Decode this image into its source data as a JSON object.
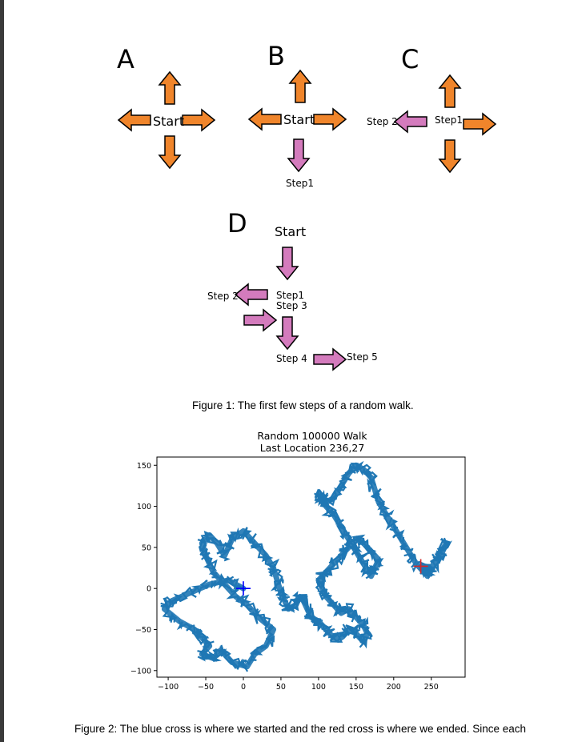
{
  "figure1": {
    "panels": {
      "A": {
        "letter": "A",
        "start_label": "Start"
      },
      "B": {
        "letter": "B",
        "start_label": "Start",
        "step1_label": "Step1"
      },
      "C": {
        "letter": "C",
        "step1_label": "Step1",
        "step2_label": "Step 2"
      },
      "D": {
        "letter": "D",
        "start_label": "Start",
        "step1_label": "Step1",
        "step2_label": "Step 2",
        "step3_label": "Step 3",
        "step4_label": "Step 4",
        "step5_label": "Step 5"
      }
    },
    "caption": "Figure 1: The first few steps of a random walk.",
    "colors": {
      "orange": "#f0852b",
      "pink": "#d47bbd"
    }
  },
  "figure2": {
    "caption": "Figure 2: The blue cross is where we started and the red cross is where we ended. Since each"
  },
  "chart_data": {
    "type": "line",
    "title": "Random 100000 Walk",
    "subtitle": "Last Location 236,27",
    "xlabel": "",
    "ylabel": "",
    "xlim": [
      -115,
      295
    ],
    "ylim": [
      -108,
      160
    ],
    "xticks": [
      -100,
      -50,
      0,
      50,
      100,
      150,
      200,
      250
    ],
    "yticks": [
      -100,
      -50,
      0,
      50,
      100,
      150
    ],
    "grid": false,
    "series": [
      {
        "color": "#1f77b4",
        "x": [
          0,
          -20,
          -45,
          -70,
          -95,
          -105,
          -85,
          -65,
          -55,
          -45,
          -55,
          -40,
          -30,
          -15,
          5,
          15,
          30,
          40,
          20,
          5,
          -10,
          -25,
          -40,
          -50,
          -55,
          -45,
          -35,
          -25,
          -15,
          0,
          15,
          30,
          40,
          45,
          50,
          55,
          60,
          70,
          75,
          80,
          85,
          90,
          100,
          110,
          120,
          130,
          140,
          150,
          160,
          165,
          160,
          150,
          140,
          130,
          120,
          110,
          105,
          100,
          110,
          120,
          130,
          140,
          150,
          160,
          170,
          180,
          175,
          170,
          160,
          150,
          140,
          130,
          120,
          110,
          105,
          100,
          110,
          120,
          130,
          140,
          150,
          160,
          170,
          175,
          180,
          190,
          200,
          210,
          220,
          230,
          240,
          250,
          260,
          270,
          265,
          255,
          245,
          236
        ],
        "y": [
          0,
          10,
          5,
          -5,
          -15,
          -25,
          -40,
          -50,
          -60,
          -70,
          -80,
          -85,
          -75,
          -90,
          -95,
          -80,
          -70,
          -50,
          -35,
          -20,
          -10,
          5,
          20,
          40,
          55,
          65,
          55,
          40,
          60,
          70,
          55,
          40,
          25,
          10,
          -5,
          -15,
          -25,
          -20,
          -10,
          -15,
          -25,
          -35,
          -40,
          -50,
          -60,
          -60,
          -50,
          -55,
          -65,
          -55,
          -45,
          -35,
          -25,
          -30,
          -20,
          -10,
          0,
          10,
          20,
          30,
          40,
          50,
          60,
          55,
          45,
          35,
          25,
          15,
          30,
          45,
          60,
          75,
          90,
          100,
          110,
          115,
          105,
          110,
          125,
          140,
          150,
          145,
          135,
          120,
          105,
          90,
          75,
          60,
          45,
          30,
          20,
          25,
          40,
          55,
          45,
          30,
          15,
          27
        ]
      }
    ],
    "markers": [
      {
        "name": "start",
        "x": 0,
        "y": 0,
        "color": "#0000ff"
      },
      {
        "name": "end",
        "x": 236,
        "y": 27,
        "color": "#d62728"
      }
    ]
  }
}
